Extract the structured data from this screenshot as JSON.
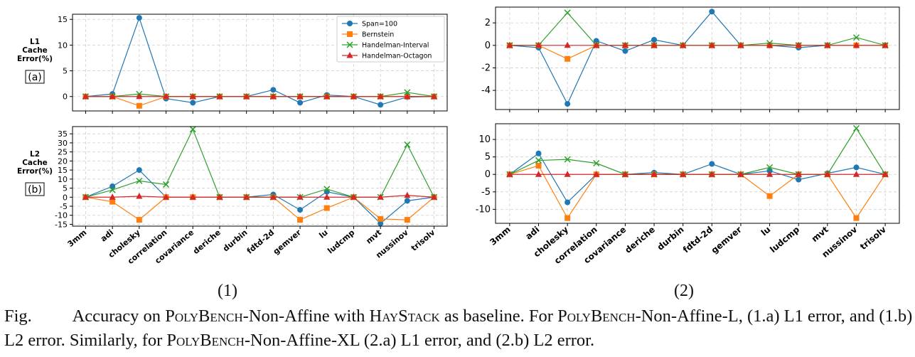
{
  "categories": [
    "3mm",
    "adi",
    "cholesky",
    "correlation",
    "covariance",
    "deriche",
    "durbin",
    "fdtd-2d",
    "gemver",
    "lu",
    "ludcmp",
    "mvt",
    "nussinov",
    "trisolv"
  ],
  "legend": [
    "Span=100",
    "Bernstein",
    "Handelman-Interval",
    "Handelman-Octagon"
  ],
  "colors": {
    "Span=100": "#1f77b4",
    "Bernstein": "#ff7f0e",
    "Handelman-Interval": "#2ca02c",
    "Handelman-Octagon": "#d62728"
  },
  "markers": {
    "Span=100": "circle",
    "Bernstein": "square",
    "Handelman-Interval": "x",
    "Handelman-Octagon": "triangle"
  },
  "ylabels": {
    "l1": [
      "L1",
      "Cache",
      "Error(%)"
    ],
    "l2": [
      "L2",
      "Cache",
      "Error(%)"
    ],
    "tag_a": "(a)",
    "tag_b": "(b)"
  },
  "sublabels": {
    "left": "(1)",
    "right": "(2)"
  },
  "caption": {
    "prefix": "Fig.",
    "t1": " Accuracy on ",
    "sc1": "PolyBench",
    "t2": "-Non-Affine with ",
    "sc2": "HayStack",
    "t3": " as baseline. For ",
    "sc3": "PolyBench",
    "t4": "-Non-Affine-L, (1.a) L1 error, and (1.b) L2 error. Similarly, for ",
    "sc4": "PolyBench",
    "t5": "-Non-Affine-XL (2.a) L1 error, and (2.b) L2 error."
  },
  "chart_data": [
    {
      "id": "1a",
      "type": "line",
      "ylim": [
        -2.8,
        16
      ],
      "yticks": [
        0,
        5,
        10,
        15
      ],
      "grid": true,
      "legend_position": "top-right",
      "series": [
        {
          "name": "Span=100",
          "values": [
            0,
            0.5,
            15.3,
            -0.4,
            -1.2,
            0,
            0,
            1.3,
            -1.2,
            0.3,
            0,
            -1.6,
            -0.1,
            0
          ]
        },
        {
          "name": "Bernstein",
          "values": [
            0,
            0,
            -1.8,
            0,
            0,
            0,
            0,
            0,
            0,
            0,
            0,
            0,
            0,
            0
          ]
        },
        {
          "name": "Handelman-Interval",
          "values": [
            0,
            0,
            0.5,
            0,
            0,
            0,
            0,
            0,
            0,
            0,
            0,
            0,
            0.8,
            0
          ]
        },
        {
          "name": "Handelman-Octagon",
          "values": [
            0,
            0,
            0,
            0,
            0,
            0,
            0,
            0,
            0,
            0,
            0,
            0,
            0,
            0
          ]
        }
      ]
    },
    {
      "id": "1b",
      "type": "line",
      "ylim": [
        -16,
        39
      ],
      "yticks": [
        -15,
        -10,
        -5,
        0,
        5,
        10,
        15,
        20,
        25,
        30,
        35
      ],
      "grid": true,
      "series": [
        {
          "name": "Span=100",
          "values": [
            0,
            6,
            15,
            0,
            0,
            0,
            0,
            1.5,
            -7,
            3,
            0,
            -14.5,
            -2,
            0
          ]
        },
        {
          "name": "Bernstein",
          "values": [
            0,
            -2.5,
            -12.5,
            0,
            0,
            0,
            0,
            0,
            -12.5,
            -6,
            0,
            -12,
            -12.5,
            0
          ]
        },
        {
          "name": "Handelman-Interval",
          "values": [
            0,
            4,
            9,
            7,
            37.5,
            0,
            0,
            0,
            0,
            4.5,
            0,
            0,
            29,
            0
          ]
        },
        {
          "name": "Handelman-Octagon",
          "values": [
            0,
            0,
            0.5,
            0,
            0,
            0,
            0,
            0,
            0,
            0,
            0,
            0,
            1,
            0
          ]
        }
      ]
    },
    {
      "id": "2a",
      "type": "line",
      "ylim": [
        -5.7,
        3.4
      ],
      "yticks": [
        -4,
        -2,
        0,
        2
      ],
      "grid": true,
      "series": [
        {
          "name": "Span=100",
          "values": [
            0,
            -0.2,
            -5.2,
            0.4,
            -0.5,
            0.5,
            0,
            3,
            0,
            0,
            -0.2,
            0,
            0,
            0
          ]
        },
        {
          "name": "Bernstein",
          "values": [
            0,
            0,
            -1.2,
            0,
            0,
            0,
            0,
            0,
            0,
            0,
            0,
            0,
            0,
            0
          ]
        },
        {
          "name": "Handelman-Interval",
          "values": [
            0,
            0,
            2.9,
            0,
            0,
            0,
            0,
            0,
            0,
            0.2,
            0,
            0,
            0.7,
            0
          ]
        },
        {
          "name": "Handelman-Octagon",
          "values": [
            0,
            0,
            0,
            0,
            0,
            0,
            0,
            0,
            0,
            0,
            0,
            0,
            0,
            0
          ]
        }
      ]
    },
    {
      "id": "2b",
      "type": "line",
      "ylim": [
        -14,
        14.5
      ],
      "yticks": [
        -10,
        -5,
        0,
        5,
        10
      ],
      "grid": true,
      "series": [
        {
          "name": "Span=100",
          "values": [
            0,
            6,
            -8,
            0,
            0,
            0.5,
            0,
            3,
            0,
            1,
            -1.5,
            0.3,
            2,
            0
          ]
        },
        {
          "name": "Bernstein",
          "values": [
            0,
            2.5,
            -12.5,
            0,
            0,
            0,
            0,
            0,
            0,
            -6.2,
            0,
            0,
            -12.5,
            0
          ]
        },
        {
          "name": "Handelman-Interval",
          "values": [
            0,
            4,
            4.3,
            3.2,
            0,
            0,
            0,
            0,
            0,
            2,
            0,
            0,
            13.2,
            0
          ]
        },
        {
          "name": "Handelman-Octagon",
          "values": [
            0,
            0,
            0,
            0,
            0,
            0,
            0,
            0,
            0,
            0,
            0,
            0,
            0,
            0
          ]
        }
      ]
    }
  ]
}
